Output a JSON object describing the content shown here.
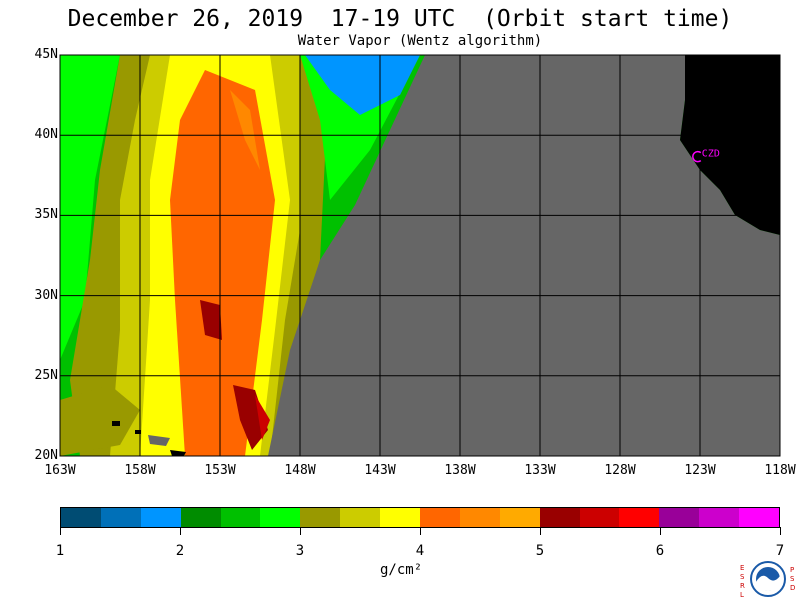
{
  "title": "December 26, 2019  17-19 UTC  (Orbit start time)",
  "subtitle": "Water Vapor (Wentz algorithm)",
  "lat_labels": [
    "45N",
    "40N",
    "35N",
    "30N",
    "25N",
    "20N"
  ],
  "lon_labels": [
    "163W",
    "158W",
    "153W",
    "148W",
    "143W",
    "138W",
    "133W",
    "128W",
    "123W",
    "118W"
  ],
  "map": {
    "lat_range": [
      20,
      45
    ],
    "lon_range": [
      -163,
      -118
    ],
    "grid": true,
    "site_marker": {
      "label": "CZD",
      "lat": 38.6,
      "lon": -123.2,
      "color": "#ff00ff"
    },
    "no_data_color": "#666666",
    "land_color": "#000000"
  },
  "colorbar": {
    "colors": [
      "#004c73",
      "#0070b8",
      "#0095ff",
      "#008c00",
      "#00c000",
      "#00ff00",
      "#999900",
      "#cccc00",
      "#ffff00",
      "#ff6600",
      "#ff8800",
      "#ffaa00",
      "#990000",
      "#cc0000",
      "#ff0000",
      "#990099",
      "#cc00cc",
      "#ff00ff"
    ],
    "ticks": [
      "1",
      "2",
      "3",
      "4",
      "5",
      "6",
      "7"
    ],
    "range": [
      1,
      7
    ],
    "units": "g/cm²"
  },
  "logo": {
    "left_letters": "ESRL",
    "right_letters": "PSD",
    "name": "NOAA"
  }
}
